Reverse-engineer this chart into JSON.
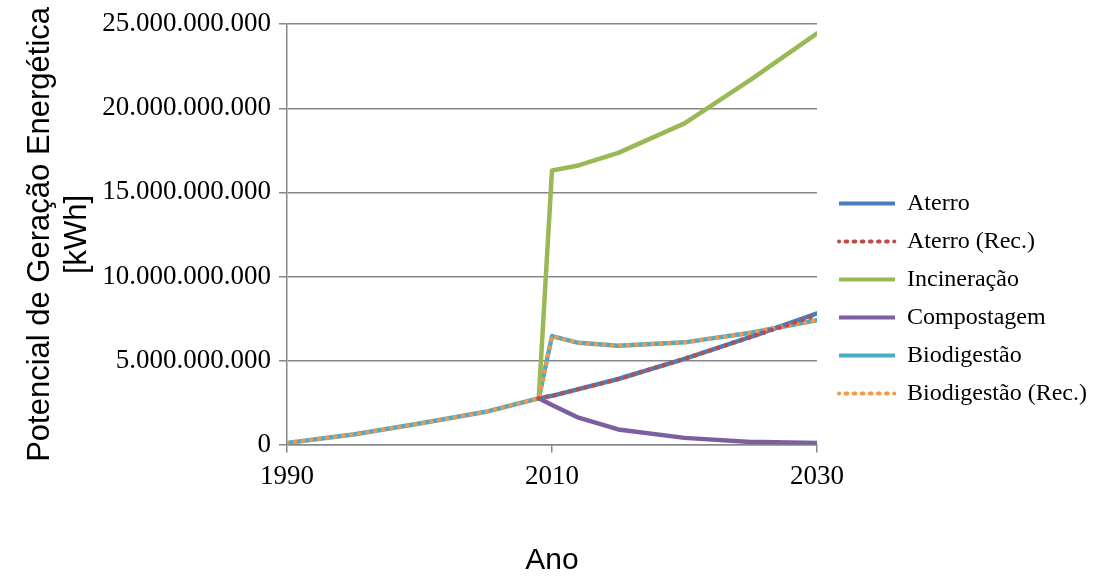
{
  "chart_data": {
    "type": "line",
    "xlabel": "Ano",
    "ylabel": "Potencial de Geração Energética [kWh]",
    "xlim": [
      1990,
      2030
    ],
    "xticks": [
      1990,
      2010,
      2030
    ],
    "ylim": [
      0,
      25000000000
    ],
    "yticks": [
      {
        "value": 0,
        "label": "0"
      },
      {
        "value": 5000000000,
        "label": "5.000.000.000"
      },
      {
        "value": 10000000000,
        "label": "10.000.000.000"
      },
      {
        "value": 15000000000,
        "label": "15.000.000.000"
      },
      {
        "value": 20000000000,
        "label": "20.000.000.000"
      },
      {
        "value": 25000000000,
        "label": "25.000.000.000"
      }
    ],
    "grid": "y",
    "legend": "right",
    "marker": "none",
    "series": [
      {
        "name": "Aterro",
        "color": "#4a7ebb",
        "line_style": "solid",
        "x": [
          2009,
          2010,
          2015,
          2020,
          2025,
          2030
        ],
        "values": [
          2750000000,
          2900000000,
          3900000000,
          5100000000,
          6400000000,
          7800000000
        ]
      },
      {
        "name": "Aterro (Rec.)",
        "color": "#be4b48",
        "line_style": "dotted",
        "x": [
          2009,
          2010,
          2015,
          2020,
          2025,
          2030
        ],
        "values": [
          2750000000,
          2900000000,
          3900000000,
          5100000000,
          6400000000,
          7700000000
        ]
      },
      {
        "name": "Incineração",
        "color": "#98b954",
        "line_style": "solid",
        "x": [
          2009,
          2010,
          2012,
          2015,
          2020,
          2025,
          2030
        ],
        "values": [
          2750000000,
          16300000000,
          16600000000,
          17350000000,
          19100000000,
          21700000000,
          24450000000
        ]
      },
      {
        "name": "Compostagem",
        "color": "#7d5fa0",
        "line_style": "solid",
        "x": [
          2009,
          2010,
          2012,
          2015,
          2020,
          2025,
          2030
        ],
        "values": [
          2750000000,
          2350000000,
          1600000000,
          900000000,
          400000000,
          160000000,
          100000000
        ]
      },
      {
        "name": "Biodigestão",
        "color": "#4bacc6",
        "line_style": "solid",
        "x": [
          1990,
          1995,
          2000,
          2005,
          2009,
          2010,
          2012,
          2015,
          2020,
          2025,
          2030
        ],
        "values": [
          100000000,
          600000000,
          1250000000,
          1950000000,
          2750000000,
          6450000000,
          6050000000,
          5880000000,
          6080000000,
          6650000000,
          7400000000
        ]
      },
      {
        "name": "Biodigestão (Rec.)",
        "color": "#f79646",
        "line_style": "dotted",
        "x": [
          1990,
          1995,
          2000,
          2005,
          2009,
          2010,
          2012,
          2015,
          2020,
          2025,
          2030
        ],
        "values": [
          100000000,
          600000000,
          1250000000,
          1950000000,
          2750000000,
          6450000000,
          6050000000,
          5880000000,
          6080000000,
          6650000000,
          7400000000
        ]
      }
    ]
  }
}
